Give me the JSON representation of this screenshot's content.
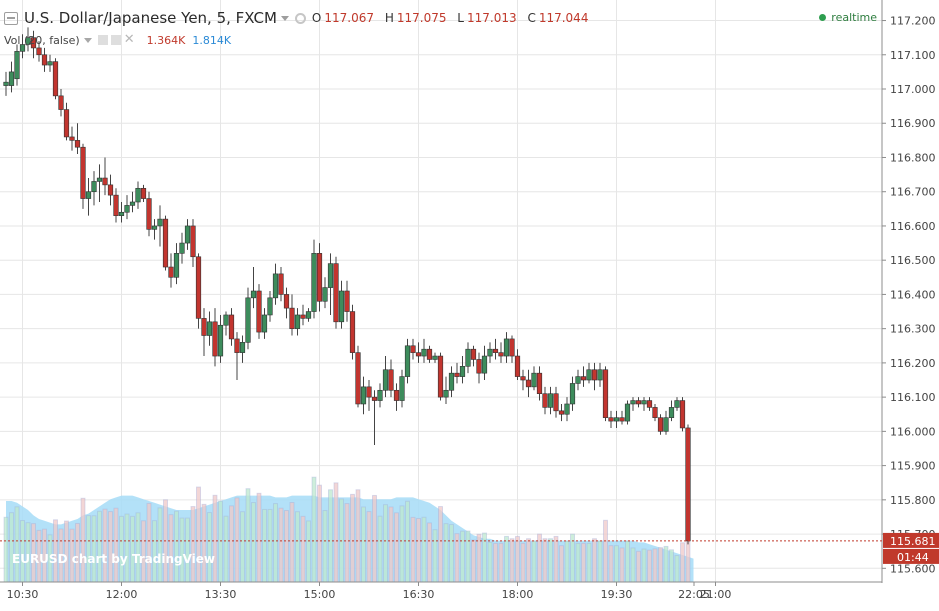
{
  "header": {
    "symbol_title": "U.S. Dollar/Japanese Yen, 5, FXCM",
    "ohlc": [
      {
        "key": "O",
        "value": "117.067"
      },
      {
        "key": "H",
        "value": "117.075"
      },
      {
        "key": "L",
        "value": "117.013"
      },
      {
        "key": "C",
        "value": "117.044"
      }
    ],
    "realtime_label": "realtime"
  },
  "volume_legend": {
    "label": "Vol (20, false)",
    "value_1": "1.364K",
    "value_2": "1.814K"
  },
  "watermark": "EURUSD chart by TradingView",
  "colors": {
    "up_candle": "#3d8c5c",
    "down_candle": "#c2352f",
    "volume_ma_fill": "#a6dcf7",
    "grid": "#e6e6e6",
    "price_tag": "#c0392b"
  },
  "chart_data": {
    "type": "candlestick",
    "y_axis": {
      "ylim": [
        115.56,
        117.26
      ],
      "ticks": [
        "117.200",
        "117.100",
        "117.000",
        "116.900",
        "116.800",
        "116.700",
        "116.600",
        "116.500",
        "116.400",
        "116.300",
        "116.200",
        "116.100",
        "116.000",
        "115.900",
        "115.800",
        "115.700",
        "115.600"
      ]
    },
    "x_axis": {
      "tick_labels": [
        "10:30",
        "12:00",
        "13:30",
        "15:00",
        "16:30",
        "18:00",
        "19:30",
        "21:00",
        "22:05"
      ]
    },
    "last_price_label": "115.681",
    "countdown_label": "01:44",
    "candles": [
      {
        "o": 117.01,
        "h": 117.05,
        "l": 116.98,
        "c": 117.02
      },
      {
        "o": 117.01,
        "h": 117.08,
        "l": 116.99,
        "c": 117.05
      },
      {
        "o": 117.03,
        "h": 117.13,
        "l": 117.01,
        "c": 117.11
      },
      {
        "o": 117.11,
        "h": 117.16,
        "l": 117.09,
        "c": 117.13
      },
      {
        "o": 117.13,
        "h": 117.18,
        "l": 117.11,
        "c": 117.15
      },
      {
        "o": 117.15,
        "h": 117.17,
        "l": 117.09,
        "c": 117.12
      },
      {
        "o": 117.12,
        "h": 117.14,
        "l": 117.08,
        "c": 117.1
      },
      {
        "o": 117.1,
        "h": 117.12,
        "l": 117.05,
        "c": 117.07
      },
      {
        "o": 117.07,
        "h": 117.1,
        "l": 117.05,
        "c": 117.08
      },
      {
        "o": 117.08,
        "h": 117.09,
        "l": 116.97,
        "c": 116.98
      },
      {
        "o": 116.98,
        "h": 117.0,
        "l": 116.92,
        "c": 116.94
      },
      {
        "o": 116.94,
        "h": 116.96,
        "l": 116.85,
        "c": 116.86
      },
      {
        "o": 116.86,
        "h": 116.89,
        "l": 116.82,
        "c": 116.85
      },
      {
        "o": 116.85,
        "h": 116.9,
        "l": 116.81,
        "c": 116.83
      },
      {
        "o": 116.83,
        "h": 116.84,
        "l": 116.65,
        "c": 116.68
      },
      {
        "o": 116.68,
        "h": 116.74,
        "l": 116.63,
        "c": 116.7
      },
      {
        "o": 116.7,
        "h": 116.76,
        "l": 116.66,
        "c": 116.73
      },
      {
        "o": 116.73,
        "h": 116.78,
        "l": 116.67,
        "c": 116.74
      },
      {
        "o": 116.74,
        "h": 116.8,
        "l": 116.69,
        "c": 116.72
      },
      {
        "o": 116.72,
        "h": 116.75,
        "l": 116.66,
        "c": 116.69
      },
      {
        "o": 116.69,
        "h": 116.71,
        "l": 116.61,
        "c": 116.63
      },
      {
        "o": 116.63,
        "h": 116.67,
        "l": 116.61,
        "c": 116.64
      },
      {
        "o": 116.64,
        "h": 116.69,
        "l": 116.62,
        "c": 116.66
      },
      {
        "o": 116.66,
        "h": 116.7,
        "l": 116.64,
        "c": 116.67
      },
      {
        "o": 116.67,
        "h": 116.73,
        "l": 116.65,
        "c": 116.71
      },
      {
        "o": 116.71,
        "h": 116.72,
        "l": 116.67,
        "c": 116.68
      },
      {
        "o": 116.68,
        "h": 116.7,
        "l": 116.57,
        "c": 116.59
      },
      {
        "o": 116.59,
        "h": 116.62,
        "l": 116.56,
        "c": 116.6
      },
      {
        "o": 116.6,
        "h": 116.66,
        "l": 116.54,
        "c": 116.62
      },
      {
        "o": 116.62,
        "h": 116.63,
        "l": 116.47,
        "c": 116.48
      },
      {
        "o": 116.48,
        "h": 116.52,
        "l": 116.42,
        "c": 116.45
      },
      {
        "o": 116.45,
        "h": 116.55,
        "l": 116.43,
        "c": 116.52
      },
      {
        "o": 116.52,
        "h": 116.58,
        "l": 116.49,
        "c": 116.55
      },
      {
        "o": 116.55,
        "h": 116.62,
        "l": 116.53,
        "c": 116.6
      },
      {
        "o": 116.6,
        "h": 116.62,
        "l": 116.48,
        "c": 116.51
      },
      {
        "o": 116.51,
        "h": 116.52,
        "l": 116.3,
        "c": 116.33
      },
      {
        "o": 116.33,
        "h": 116.36,
        "l": 116.22,
        "c": 116.28
      },
      {
        "o": 116.28,
        "h": 116.35,
        "l": 116.25,
        "c": 116.32
      },
      {
        "o": 116.32,
        "h": 116.36,
        "l": 116.19,
        "c": 116.22
      },
      {
        "o": 116.22,
        "h": 116.34,
        "l": 116.2,
        "c": 116.31
      },
      {
        "o": 116.31,
        "h": 116.35,
        "l": 116.28,
        "c": 116.34
      },
      {
        "o": 116.34,
        "h": 116.36,
        "l": 116.25,
        "c": 116.27
      },
      {
        "o": 116.27,
        "h": 116.29,
        "l": 116.15,
        "c": 116.23
      },
      {
        "o": 116.23,
        "h": 116.28,
        "l": 116.2,
        "c": 116.26
      },
      {
        "o": 116.26,
        "h": 116.42,
        "l": 116.24,
        "c": 116.39
      },
      {
        "o": 116.39,
        "h": 116.48,
        "l": 116.36,
        "c": 116.41
      },
      {
        "o": 116.41,
        "h": 116.43,
        "l": 116.27,
        "c": 116.29
      },
      {
        "o": 116.29,
        "h": 116.36,
        "l": 116.27,
        "c": 116.34
      },
      {
        "o": 116.34,
        "h": 116.41,
        "l": 116.32,
        "c": 116.39
      },
      {
        "o": 116.39,
        "h": 116.49,
        "l": 116.37,
        "c": 116.46
      },
      {
        "o": 116.46,
        "h": 116.48,
        "l": 116.38,
        "c": 116.4
      },
      {
        "o": 116.4,
        "h": 116.42,
        "l": 116.33,
        "c": 116.36
      },
      {
        "o": 116.36,
        "h": 116.4,
        "l": 116.28,
        "c": 116.3
      },
      {
        "o": 116.3,
        "h": 116.36,
        "l": 116.28,
        "c": 116.34
      },
      {
        "o": 116.34,
        "h": 116.37,
        "l": 116.31,
        "c": 116.33
      },
      {
        "o": 116.33,
        "h": 116.36,
        "l": 116.32,
        "c": 116.35
      },
      {
        "o": 116.35,
        "h": 116.56,
        "l": 116.33,
        "c": 116.52
      },
      {
        "o": 116.52,
        "h": 116.55,
        "l": 116.35,
        "c": 116.38
      },
      {
        "o": 116.38,
        "h": 116.45,
        "l": 116.36,
        "c": 116.42
      },
      {
        "o": 116.42,
        "h": 116.52,
        "l": 116.34,
        "c": 116.49
      },
      {
        "o": 116.49,
        "h": 116.51,
        "l": 116.3,
        "c": 116.32
      },
      {
        "o": 116.32,
        "h": 116.44,
        "l": 116.3,
        "c": 116.41
      },
      {
        "o": 116.41,
        "h": 116.44,
        "l": 116.32,
        "c": 116.35
      },
      {
        "o": 116.35,
        "h": 116.37,
        "l": 116.21,
        "c": 116.23
      },
      {
        "o": 116.23,
        "h": 116.25,
        "l": 116.07,
        "c": 116.08
      },
      {
        "o": 116.08,
        "h": 116.16,
        "l": 116.05,
        "c": 116.13
      },
      {
        "o": 116.13,
        "h": 116.15,
        "l": 116.06,
        "c": 116.1
      },
      {
        "o": 116.1,
        "h": 116.12,
        "l": 115.96,
        "c": 116.09
      },
      {
        "o": 116.09,
        "h": 116.14,
        "l": 116.07,
        "c": 116.12
      },
      {
        "o": 116.12,
        "h": 116.22,
        "l": 116.1,
        "c": 116.18
      },
      {
        "o": 116.18,
        "h": 116.21,
        "l": 116.1,
        "c": 116.12
      },
      {
        "o": 116.12,
        "h": 116.14,
        "l": 116.06,
        "c": 116.09
      },
      {
        "o": 116.09,
        "h": 116.18,
        "l": 116.07,
        "c": 116.16
      },
      {
        "o": 116.16,
        "h": 116.27,
        "l": 116.14,
        "c": 116.25
      },
      {
        "o": 116.25,
        "h": 116.27,
        "l": 116.21,
        "c": 116.23
      },
      {
        "o": 116.23,
        "h": 116.26,
        "l": 116.2,
        "c": 116.22
      },
      {
        "o": 116.22,
        "h": 116.27,
        "l": 116.2,
        "c": 116.24
      },
      {
        "o": 116.24,
        "h": 116.25,
        "l": 116.2,
        "c": 116.21
      },
      {
        "o": 116.21,
        "h": 116.23,
        "l": 116.2,
        "c": 116.22
      },
      {
        "o": 116.22,
        "h": 116.23,
        "l": 116.09,
        "c": 116.1
      },
      {
        "o": 116.1,
        "h": 116.16,
        "l": 116.08,
        "c": 116.12
      },
      {
        "o": 116.12,
        "h": 116.19,
        "l": 116.1,
        "c": 116.17
      },
      {
        "o": 116.17,
        "h": 116.2,
        "l": 116.14,
        "c": 116.16
      },
      {
        "o": 116.16,
        "h": 116.22,
        "l": 116.14,
        "c": 116.19
      },
      {
        "o": 116.19,
        "h": 116.26,
        "l": 116.17,
        "c": 116.24
      },
      {
        "o": 116.24,
        "h": 116.25,
        "l": 116.19,
        "c": 116.21
      },
      {
        "o": 116.21,
        "h": 116.23,
        "l": 116.14,
        "c": 116.17
      },
      {
        "o": 116.17,
        "h": 116.25,
        "l": 116.15,
        "c": 116.22
      },
      {
        "o": 116.22,
        "h": 116.26,
        "l": 116.2,
        "c": 116.24
      },
      {
        "o": 116.24,
        "h": 116.27,
        "l": 116.21,
        "c": 116.23
      },
      {
        "o": 116.23,
        "h": 116.26,
        "l": 116.2,
        "c": 116.22
      },
      {
        "o": 116.22,
        "h": 116.29,
        "l": 116.2,
        "c": 116.27
      },
      {
        "o": 116.27,
        "h": 116.28,
        "l": 116.2,
        "c": 116.22
      },
      {
        "o": 116.22,
        "h": 116.24,
        "l": 116.15,
        "c": 116.16
      },
      {
        "o": 116.16,
        "h": 116.18,
        "l": 116.12,
        "c": 116.15
      },
      {
        "o": 116.15,
        "h": 116.18,
        "l": 116.1,
        "c": 116.13
      },
      {
        "o": 116.13,
        "h": 116.19,
        "l": 116.12,
        "c": 116.17
      },
      {
        "o": 116.17,
        "h": 116.19,
        "l": 116.09,
        "c": 116.11
      },
      {
        "o": 116.11,
        "h": 116.13,
        "l": 116.05,
        "c": 116.07
      },
      {
        "o": 116.07,
        "h": 116.13,
        "l": 116.05,
        "c": 116.11
      },
      {
        "o": 116.11,
        "h": 116.13,
        "l": 116.04,
        "c": 116.06
      },
      {
        "o": 116.06,
        "h": 116.08,
        "l": 116.03,
        "c": 116.05
      },
      {
        "o": 116.05,
        "h": 116.1,
        "l": 116.03,
        "c": 116.08
      },
      {
        "o": 116.08,
        "h": 116.16,
        "l": 116.06,
        "c": 116.14
      },
      {
        "o": 116.14,
        "h": 116.18,
        "l": 116.12,
        "c": 116.16
      },
      {
        "o": 116.16,
        "h": 116.19,
        "l": 116.13,
        "c": 116.15
      },
      {
        "o": 116.15,
        "h": 116.2,
        "l": 116.14,
        "c": 116.18
      },
      {
        "o": 116.18,
        "h": 116.2,
        "l": 116.12,
        "c": 116.15
      },
      {
        "o": 116.15,
        "h": 116.2,
        "l": 116.13,
        "c": 116.18
      },
      {
        "o": 116.18,
        "h": 116.19,
        "l": 116.03,
        "c": 116.04
      },
      {
        "o": 116.04,
        "h": 116.06,
        "l": 116.01,
        "c": 116.03
      },
      {
        "o": 116.03,
        "h": 116.06,
        "l": 116.01,
        "c": 116.04
      },
      {
        "o": 116.04,
        "h": 116.06,
        "l": 116.02,
        "c": 116.03
      },
      {
        "o": 116.03,
        "h": 116.09,
        "l": 116.02,
        "c": 116.08
      },
      {
        "o": 116.08,
        "h": 116.1,
        "l": 116.06,
        "c": 116.09
      },
      {
        "o": 116.09,
        "h": 116.1,
        "l": 116.07,
        "c": 116.08
      },
      {
        "o": 116.08,
        "h": 116.1,
        "l": 116.06,
        "c": 116.09
      },
      {
        "o": 116.09,
        "h": 116.1,
        "l": 116.06,
        "c": 116.07
      },
      {
        "o": 116.07,
        "h": 116.08,
        "l": 116.03,
        "c": 116.04
      },
      {
        "o": 116.04,
        "h": 116.05,
        "l": 115.99,
        "c": 116.0
      },
      {
        "o": 116.0,
        "h": 116.06,
        "l": 115.99,
        "c": 116.04
      },
      {
        "o": 116.04,
        "h": 116.09,
        "l": 116.03,
        "c": 116.07
      },
      {
        "o": 116.07,
        "h": 116.1,
        "l": 116.06,
        "c": 116.09
      },
      {
        "o": 116.09,
        "h": 116.1,
        "l": 116.0,
        "c": 116.01
      },
      {
        "o": 116.01,
        "h": 116.02,
        "l": 115.67,
        "c": 115.68
      }
    ],
    "volume_ma": [
      0.45,
      0.45,
      0.44,
      0.42,
      0.4,
      0.37,
      0.35,
      0.34,
      0.33,
      0.32,
      0.32,
      0.33,
      0.34,
      0.35,
      0.37,
      0.38,
      0.4,
      0.42,
      0.44,
      0.46,
      0.47,
      0.48,
      0.48,
      0.48,
      0.47,
      0.46,
      0.45,
      0.44,
      0.43,
      0.42,
      0.41,
      0.4,
      0.4,
      0.4,
      0.4,
      0.41,
      0.42,
      0.43,
      0.44,
      0.45,
      0.46,
      0.47,
      0.48,
      0.48,
      0.48,
      0.48,
      0.48,
      0.48,
      0.48,
      0.47,
      0.47,
      0.47,
      0.48,
      0.48,
      0.48,
      0.48,
      0.48,
      0.47,
      0.47,
      0.47,
      0.47,
      0.47,
      0.47,
      0.47,
      0.47,
      0.46,
      0.46,
      0.46,
      0.46,
      0.46,
      0.46,
      0.47,
      0.47,
      0.47,
      0.47,
      0.46,
      0.45,
      0.44,
      0.42,
      0.4,
      0.37,
      0.34,
      0.32,
      0.3,
      0.28,
      0.26,
      0.25,
      0.24,
      0.24,
      0.23,
      0.23,
      0.23,
      0.23,
      0.23,
      0.23,
      0.23,
      0.23,
      0.23,
      0.23,
      0.23,
      0.23,
      0.23,
      0.23,
      0.23,
      0.23,
      0.23,
      0.23,
      0.23,
      0.23,
      0.23,
      0.23,
      0.23,
      0.23,
      0.23,
      0.23,
      0.22,
      0.22,
      0.21,
      0.2,
      0.19,
      0.18,
      0.17,
      0.16,
      0.15,
      0.14,
      0.13
    ]
  }
}
